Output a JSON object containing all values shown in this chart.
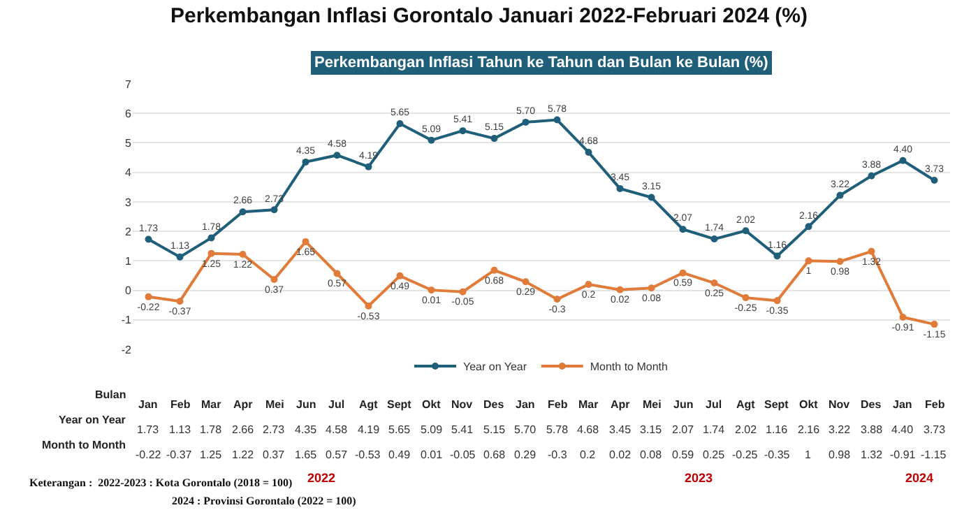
{
  "chart_data": {
    "type": "line",
    "title": "Perkembangan Inflasi Gorontalo Januari 2022-Februari 2024 (%)",
    "subtitle": "Perkembangan Inflasi Tahun ke Tahun dan Bulan ke Bulan (%)",
    "xlabel": "Bulan",
    "categories": [
      "Jan",
      "Feb",
      "Mar",
      "Apr",
      "Mei",
      "Jun",
      "Jul",
      "Agt",
      "Sept",
      "Okt",
      "Nov",
      "Des",
      "Jan",
      "Feb",
      "Mar",
      "Apr",
      "Mei",
      "Jun",
      "Jul",
      "Agt",
      "Sept",
      "Okt",
      "Nov",
      "Des",
      "Jan",
      "Feb"
    ],
    "series": [
      {
        "name": "Year on Year",
        "color": "#1f5f7a",
        "values": [
          1.73,
          1.13,
          1.78,
          2.66,
          2.73,
          4.35,
          4.58,
          4.19,
          5.65,
          5.09,
          5.41,
          5.15,
          5.7,
          5.78,
          4.68,
          3.45,
          3.15,
          2.07,
          1.74,
          2.02,
          1.16,
          2.16,
          3.22,
          3.88,
          4.4,
          3.73
        ],
        "value_labels": [
          "1.73",
          "1.13",
          "1.78",
          "2.66",
          "2.73",
          "4.35",
          "4.58",
          "4.19",
          "5.65",
          "5.09",
          "5.41",
          "5.15",
          "5.70",
          "5.78",
          "4.68",
          "3.45",
          "3.15",
          "2.07",
          "1.74",
          "2.02",
          "1.16",
          "2.16",
          "3.22",
          "3.88",
          "4.40",
          "3.73"
        ]
      },
      {
        "name": "Month to Month",
        "color": "#e07b39",
        "values": [
          -0.22,
          -0.37,
          1.25,
          1.22,
          0.37,
          1.65,
          0.57,
          -0.53,
          0.49,
          0.01,
          -0.05,
          0.68,
          0.29,
          -0.3,
          0.2,
          0.02,
          0.08,
          0.59,
          0.25,
          -0.25,
          -0.35,
          1,
          0.98,
          1.32,
          -0.91,
          -1.15
        ],
        "value_labels": [
          "-0.22",
          "-0.37",
          "1.25",
          "1.22",
          "0.37",
          "1.65",
          "0.57",
          "-0.53",
          "0.49",
          "0.01",
          "-0.05",
          "0.68",
          "0.29",
          "-0.3",
          "0.2",
          "0.02",
          "0.08",
          "0.59",
          "0.25",
          "-0.25",
          "-0.35",
          "1",
          "0.98",
          "1.32",
          "-0.91",
          "-1.15"
        ]
      }
    ],
    "ylim": [
      -2,
      7
    ],
    "yticks": [
      -2,
      -1,
      0,
      1,
      2,
      3,
      4,
      5,
      6,
      7
    ],
    "grid": "y",
    "legend": "bottom",
    "marker": "circle",
    "line_style": "solid",
    "annotations": [
      "2022",
      "2023",
      "2024",
      "Keterangan :  2022-2023 : Kota Gorontalo (2018 = 100)",
      "2024 : Provinsi Gorontalo (2022 = 100)"
    ]
  }
}
